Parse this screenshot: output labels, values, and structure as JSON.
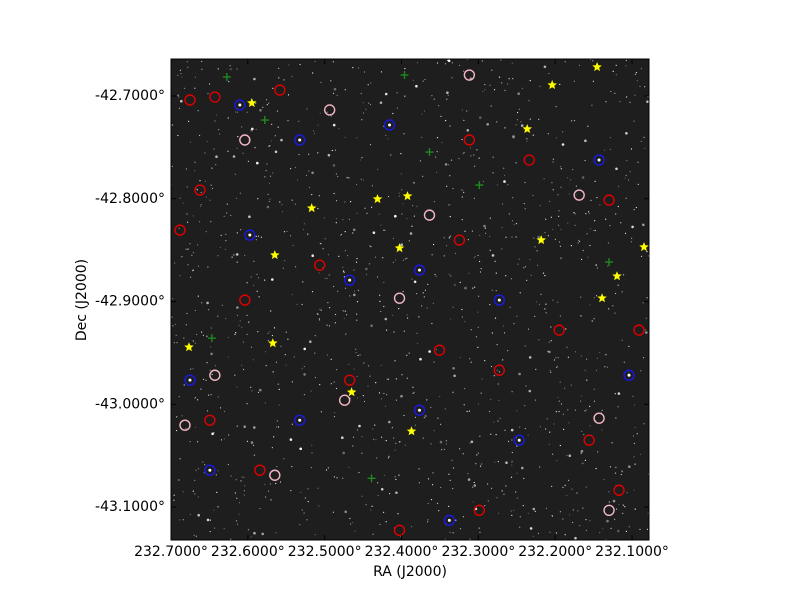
{
  "chart_data": {
    "type": "sky-scatter",
    "x_label": "RA (J2000)",
    "y_label": "Dec (J2000)",
    "xlim": [
      232.7,
      232.0779
    ],
    "ylim": [
      -42.664,
      -43.132
    ],
    "xticks": [
      {
        "value": 232.7,
        "label": "232.7000°"
      },
      {
        "value": 232.6,
        "label": "232.6000°"
      },
      {
        "value": 232.5,
        "label": "232.5000°"
      },
      {
        "value": 232.4,
        "label": "232.4000°"
      },
      {
        "value": 232.3,
        "label": "232.3000°"
      },
      {
        "value": 232.2,
        "label": "232.2000°"
      },
      {
        "value": 232.1,
        "label": "232.1000°"
      }
    ],
    "yticks": [
      {
        "value": -42.7,
        "label": "-42.7000°"
      },
      {
        "value": -42.8,
        "label": "-42.8000°"
      },
      {
        "value": -42.9,
        "label": "-42.9000°"
      },
      {
        "value": -43.0,
        "label": "-43.0000°"
      },
      {
        "value": -43.1,
        "label": "-43.1000°"
      }
    ],
    "series": [
      {
        "color": "#e00000",
        "marker": "circle",
        "x": [
          232.6753,
          232.6429,
          232.5584,
          232.3117,
          232.2338,
          232.6623,
          232.1299,
          232.6039,
          232.5065,
          232.3247,
          232.1948,
          232.0909,
          232.6494,
          232.4675,
          232.3506,
          232.2727,
          232.1558,
          232.5844,
          232.4026,
          232.1169,
          232.6883,
          232.2987
        ],
        "values": [
          -42.7039,
          -42.701,
          -42.6942,
          -42.7428,
          -42.7623,
          -42.7915,
          -42.8013,
          -42.8986,
          -42.8646,
          -42.8402,
          -42.9278,
          -42.9278,
          -43.0155,
          -42.9765,
          -42.9473,
          -42.9668,
          -43.0349,
          -43.0641,
          -43.1226,
          -43.0836,
          -42.8305,
          -43.1031
        ]
      },
      {
        "color": "#1a1ae6",
        "marker": "dot-circle",
        "x": [
          232.6104,
          232.5325,
          232.4156,
          232.5974,
          232.4675,
          232.3766,
          232.2727,
          232.1429,
          232.6753,
          232.5325,
          232.3766,
          232.2468,
          232.6494,
          232.3377,
          232.1039
        ],
        "values": [
          -42.7088,
          -42.7428,
          -42.7282,
          -42.8353,
          -42.8792,
          -42.8694,
          -42.8986,
          -42.7623,
          -42.9765,
          -43.0155,
          -43.0057,
          -43.0349,
          -43.0641,
          -43.1129,
          -42.9717
        ]
      },
      {
        "color": "#f4b8c4",
        "marker": "circle",
        "x": [
          232.6039,
          232.4935,
          232.3117,
          232.1688,
          232.4026,
          232.3636,
          232.1429,
          232.6429,
          232.5649,
          232.474,
          232.6818,
          232.1299
        ],
        "values": [
          -42.7428,
          -42.7136,
          -42.6796,
          -42.7964,
          -42.8967,
          -42.8159,
          -43.0135,
          -42.9717,
          -43.069,
          -42.996,
          -43.0203,
          -43.1031
        ]
      },
      {
        "color": "#1f8a1f",
        "marker": "plus",
        "x": [
          232.6273,
          232.5779,
          232.3961,
          232.2987,
          232.1299,
          232.439,
          232.3636,
          232.6468
        ],
        "values": [
          -42.6815,
          -42.7234,
          -42.6796,
          -42.7867,
          -42.8616,
          -43.072,
          -42.7545,
          -42.9356
        ]
      },
      {
        "color": "#ffff00",
        "marker": "star",
        "x": [
          232.1455,
          232.2039,
          232.5948,
          232.2364,
          232.4312,
          232.3922,
          232.5169,
          232.5649,
          232.4026,
          232.2182,
          232.1195,
          232.139,
          232.0844,
          232.6766,
          232.5675,
          232.4649,
          232.387
        ],
        "values": [
          -42.6718,
          -42.6893,
          -42.7068,
          -42.7321,
          -42.8003,
          -42.7974,
          -42.8091,
          -42.8548,
          -42.848,
          -42.8402,
          -42.8753,
          -42.8967,
          -42.847,
          -42.9444,
          -42.9405,
          -42.9882,
          -43.0262
        ]
      }
    ]
  }
}
